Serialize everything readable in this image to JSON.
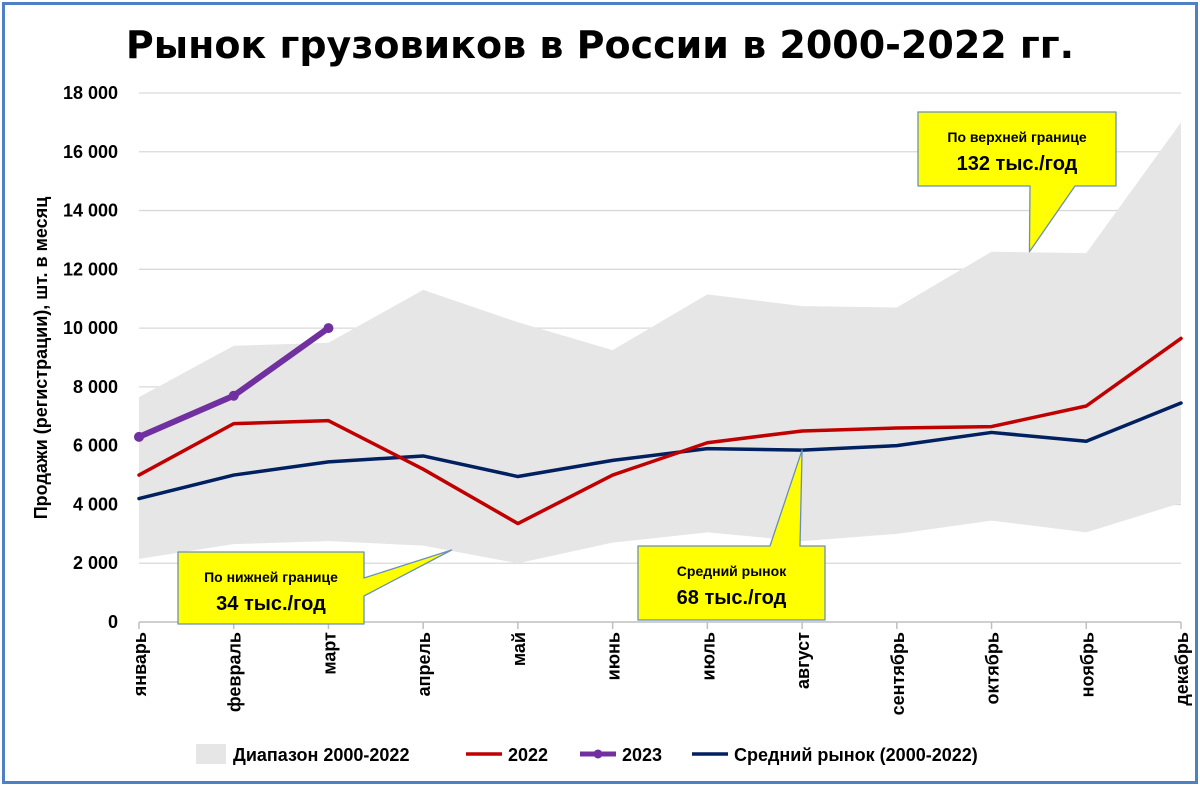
{
  "chart_data": {
    "type": "line",
    "title": "Рынок грузовиков в России в 2000-2022 гг.",
    "ylabel": "Продажи (регистрации), шт. в месяц",
    "xlabel": "",
    "ylim": [
      0,
      18000
    ],
    "y_ticks": [
      0,
      2000,
      4000,
      6000,
      8000,
      10000,
      12000,
      14000,
      16000,
      18000
    ],
    "y_tick_labels": [
      "0",
      "2 000",
      "4 000",
      "6 000",
      "8 000",
      "10 000",
      "12 000",
      "14 000",
      "16 000",
      "18 000"
    ],
    "grid": true,
    "legend_position": "bottom",
    "categories": [
      "январь",
      "февраль",
      "март",
      "апрель",
      "май",
      "июнь",
      "июль",
      "август",
      "сентябрь",
      "октябрь",
      "ноябрь",
      "декабрь"
    ],
    "range": {
      "name": "Диапазон 2000-2022",
      "color": "#e6e6e6",
      "lower": [
        2150,
        2650,
        2750,
        2600,
        2000,
        2700,
        3050,
        2750,
        3000,
        3450,
        3050,
        4050
      ],
      "upper": [
        7650,
        9400,
        9500,
        11300,
        10200,
        9250,
        11150,
        10750,
        10700,
        12600,
        12550,
        17000
      ]
    },
    "series": [
      {
        "name": "2022",
        "color": "#c00000",
        "values": [
          5000,
          6750,
          6850,
          5200,
          3350,
          5000,
          6100,
          6500,
          6600,
          6650,
          7350,
          9650
        ]
      },
      {
        "name": "2023",
        "color": "#7030a0",
        "values": [
          6300,
          7700,
          10000,
          null,
          null,
          null,
          null,
          null,
          null,
          null,
          null,
          null
        ]
      },
      {
        "name": "Средний рынок (2000-2022)",
        "color": "#002060",
        "values": [
          4200,
          5000,
          5450,
          5650,
          4950,
          5500,
          5900,
          5850,
          6000,
          6450,
          6150,
          7450
        ]
      }
    ],
    "annotations": [
      {
        "id": "upper",
        "line1": "По верхней границе",
        "line2": "132 тыс./год",
        "target_month": 9.4,
        "target_value": 12600
      },
      {
        "id": "lower",
        "line1": "По нижней границе",
        "line2": "34 тыс./год",
        "target_month": 3.3,
        "target_value": 2450
      },
      {
        "id": "middle",
        "line1": "Средний рынок",
        "line2": "68 тыс./год",
        "target_month": 7.0,
        "target_value": 5850
      }
    ],
    "callout_color": "#ffff00"
  }
}
